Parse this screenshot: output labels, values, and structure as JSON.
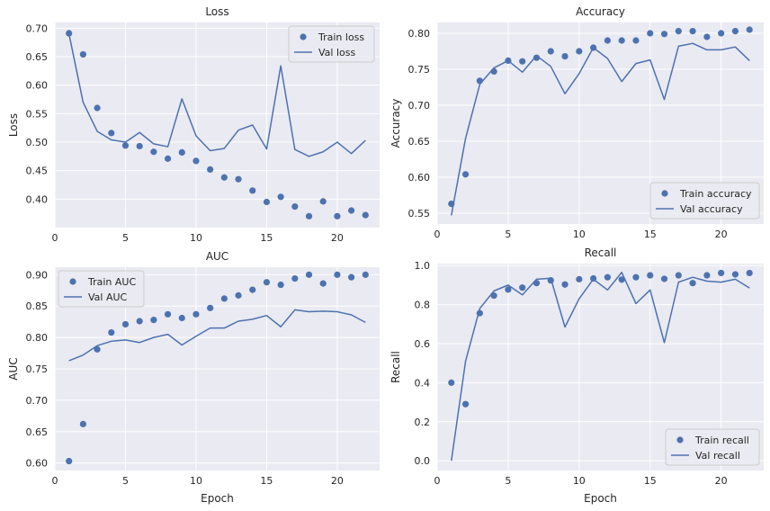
{
  "chart_data": [
    {
      "type": "line",
      "title": "Loss",
      "xlabel": "",
      "ylabel": "Loss",
      "xlim": [
        0,
        23
      ],
      "ylim": [
        0.35,
        0.71
      ],
      "xticks": [
        0,
        5,
        10,
        15,
        20
      ],
      "yticks": [
        0.4,
        0.45,
        0.5,
        0.55,
        0.6,
        0.65,
        0.7
      ],
      "ytick_labels": [
        "0.40",
        "0.45",
        "0.50",
        "0.55",
        "0.60",
        "0.65",
        "0.70"
      ],
      "legend_position": "upper-right",
      "x": [
        1,
        2,
        3,
        4,
        5,
        6,
        7,
        8,
        9,
        10,
        11,
        12,
        13,
        14,
        15,
        16,
        17,
        18,
        19,
        20,
        21,
        22
      ],
      "series": [
        {
          "name": "Train loss",
          "style": "points",
          "values": [
            0.691,
            0.654,
            0.56,
            0.516,
            0.494,
            0.493,
            0.483,
            0.471,
            0.482,
            0.467,
            0.452,
            0.438,
            0.435,
            0.415,
            0.395,
            0.404,
            0.387,
            0.37,
            0.396,
            0.37,
            0.38,
            0.372
          ]
        },
        {
          "name": "Val loss",
          "style": "line",
          "values": [
            0.69,
            0.57,
            0.519,
            0.504,
            0.5,
            0.517,
            0.497,
            0.492,
            0.576,
            0.511,
            0.485,
            0.489,
            0.521,
            0.53,
            0.488,
            0.634,
            0.487,
            0.475,
            0.483,
            0.5,
            0.48,
            0.503
          ]
        }
      ]
    },
    {
      "type": "line",
      "title": "Accuracy",
      "xlabel": "",
      "ylabel": "Accuracy",
      "xlim": [
        0,
        23
      ],
      "ylim": [
        0.535,
        0.815
      ],
      "xticks": [
        0,
        5,
        10,
        15,
        20
      ],
      "yticks": [
        0.55,
        0.6,
        0.65,
        0.7,
        0.75,
        0.8
      ],
      "ytick_labels": [
        "0.55",
        "0.60",
        "0.65",
        "0.70",
        "0.75",
        "0.80"
      ],
      "legend_position": "lower-right",
      "x": [
        1,
        2,
        3,
        4,
        5,
        6,
        7,
        8,
        9,
        10,
        11,
        12,
        13,
        14,
        15,
        16,
        17,
        18,
        19,
        20,
        21,
        22
      ],
      "series": [
        {
          "name": "Train accuracy",
          "style": "points",
          "values": [
            0.563,
            0.604,
            0.734,
            0.747,
            0.762,
            0.761,
            0.766,
            0.775,
            0.768,
            0.775,
            0.78,
            0.79,
            0.79,
            0.79,
            0.8,
            0.799,
            0.803,
            0.803,
            0.795,
            0.8,
            0.803,
            0.805
          ]
        },
        {
          "name": "Val accuracy",
          "style": "line",
          "values": [
            0.547,
            0.654,
            0.729,
            0.752,
            0.762,
            0.746,
            0.769,
            0.754,
            0.716,
            0.744,
            0.78,
            0.765,
            0.733,
            0.758,
            0.763,
            0.708,
            0.782,
            0.786,
            0.777,
            0.777,
            0.781,
            0.762
          ]
        }
      ]
    },
    {
      "type": "line",
      "title": "AUC",
      "xlabel": "Epoch",
      "ylabel": "AUC",
      "xlim": [
        0,
        23
      ],
      "ylim": [
        0.588,
        0.912
      ],
      "xticks": [
        0,
        5,
        10,
        15,
        20
      ],
      "yticks": [
        0.6,
        0.65,
        0.7,
        0.75,
        0.8,
        0.85,
        0.9
      ],
      "ytick_labels": [
        "0.60",
        "0.65",
        "0.70",
        "0.75",
        "0.80",
        "0.85",
        "0.90"
      ],
      "legend_position": "upper-left",
      "x": [
        1,
        2,
        3,
        4,
        5,
        6,
        7,
        8,
        9,
        10,
        11,
        12,
        13,
        14,
        15,
        16,
        17,
        18,
        19,
        20,
        21,
        22
      ],
      "series": [
        {
          "name": "Train AUC",
          "style": "points",
          "values": [
            0.603,
            0.662,
            0.781,
            0.808,
            0.821,
            0.826,
            0.828,
            0.837,
            0.831,
            0.837,
            0.847,
            0.862,
            0.867,
            0.876,
            0.888,
            0.884,
            0.894,
            0.9,
            0.886,
            0.9,
            0.896,
            0.9
          ]
        },
        {
          "name": "Val AUC",
          "style": "line",
          "values": [
            0.763,
            0.772,
            0.787,
            0.794,
            0.796,
            0.792,
            0.8,
            0.805,
            0.788,
            0.802,
            0.815,
            0.815,
            0.826,
            0.829,
            0.835,
            0.817,
            0.844,
            0.841,
            0.842,
            0.841,
            0.836,
            0.824
          ]
        }
      ]
    },
    {
      "type": "line",
      "title": "Recall",
      "xlabel": "Epoch",
      "ylabel": "Recall",
      "xlim": [
        0,
        23
      ],
      "ylim": [
        -0.05,
        1.01
      ],
      "xticks": [
        0,
        5,
        10,
        15,
        20
      ],
      "yticks": [
        0.0,
        0.2,
        0.4,
        0.6,
        0.8,
        1.0
      ],
      "ytick_labels": [
        "0.0",
        "0.2",
        "0.4",
        "0.6",
        "0.8",
        "1.0"
      ],
      "legend_position": "lower-right",
      "x": [
        1,
        2,
        3,
        4,
        5,
        6,
        7,
        8,
        9,
        10,
        11,
        12,
        13,
        14,
        15,
        16,
        17,
        18,
        19,
        20,
        21,
        22
      ],
      "series": [
        {
          "name": "Train recall",
          "style": "points",
          "values": [
            0.4,
            0.29,
            0.756,
            0.846,
            0.877,
            0.887,
            0.91,
            0.924,
            0.903,
            0.93,
            0.934,
            0.94,
            0.928,
            0.94,
            0.95,
            0.932,
            0.95,
            0.91,
            0.95,
            0.962,
            0.955,
            0.962
          ]
        },
        {
          "name": "Val recall",
          "style": "line",
          "values": [
            0.0,
            0.51,
            0.78,
            0.87,
            0.9,
            0.85,
            0.93,
            0.935,
            0.685,
            0.83,
            0.93,
            0.875,
            0.965,
            0.805,
            0.875,
            0.605,
            0.915,
            0.94,
            0.92,
            0.915,
            0.93,
            0.885
          ]
        }
      ]
    }
  ],
  "colors": {
    "axes_background": "#eaeaf2",
    "grid": "#ffffff",
    "series": "#4c72b0",
    "text": "#262626",
    "legend_background": "#eaeaf2",
    "legend_border": "#cccccc"
  }
}
